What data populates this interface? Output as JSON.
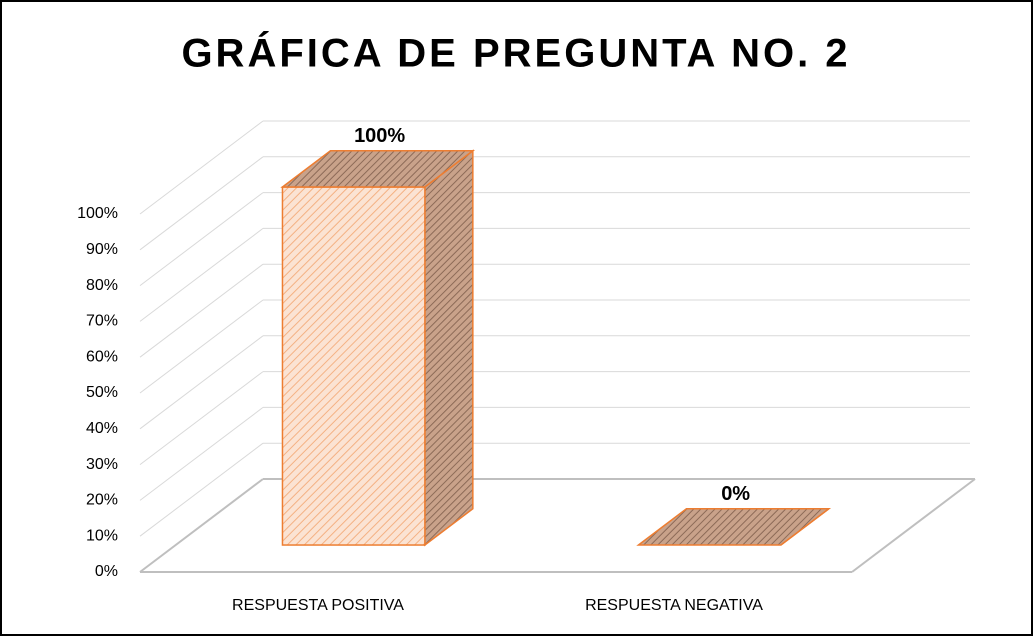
{
  "chart_data": {
    "type": "bar3d",
    "title": "GRÁFICA DE PREGUNTA NO. 2",
    "categories": [
      "RESPUESTA POSITIVA",
      "RESPUESTA NEGATIVA"
    ],
    "values": [
      100,
      0
    ],
    "value_labels": [
      "100%",
      "0%"
    ],
    "color": "#ed7d31",
    "ylim": [
      0,
      100
    ],
    "yticks": [
      {
        "value": 0,
        "label": "0%"
      },
      {
        "value": 10,
        "label": "10%"
      },
      {
        "value": 20,
        "label": "20%"
      },
      {
        "value": 30,
        "label": "30%"
      },
      {
        "value": 40,
        "label": "40%"
      },
      {
        "value": 50,
        "label": "50%"
      },
      {
        "value": 60,
        "label": "60%"
      },
      {
        "value": 70,
        "label": "70%"
      },
      {
        "value": 80,
        "label": "80%"
      },
      {
        "value": 90,
        "label": "90%"
      },
      {
        "value": 100,
        "label": "100%"
      }
    ],
    "grid": true
  }
}
